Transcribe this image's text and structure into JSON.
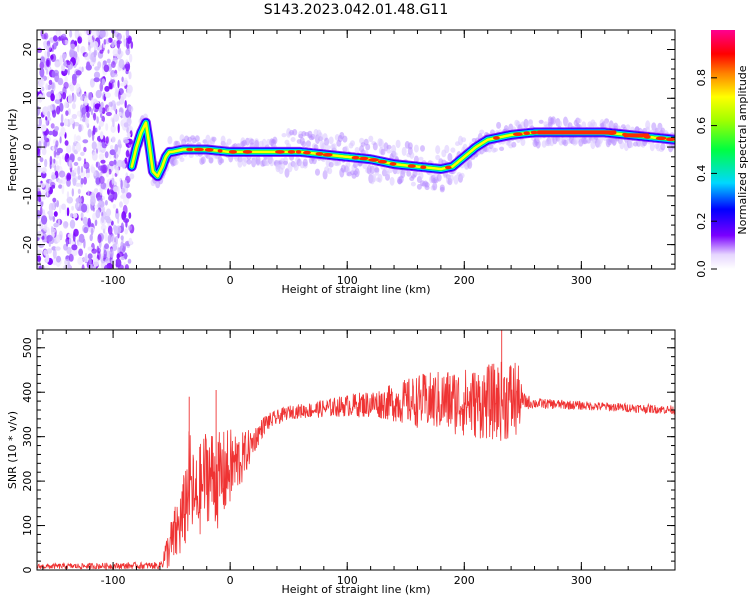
{
  "figure": {
    "title": "S143.2023.042.01.48.G11"
  },
  "colorbar": {
    "label": "Normalized spectral amplitude",
    "ticks": [
      "0.0",
      "0.2",
      "0.4",
      "0.6",
      "0.8"
    ],
    "range": [
      0,
      1
    ],
    "colormap": "rainbow-hsv"
  },
  "chart_data": [
    {
      "type": "heatmap",
      "title": "",
      "xlabel": "Height of straight line (km)",
      "ylabel": "Frequency (Hz)",
      "xlim": [
        -165,
        380
      ],
      "ylim": [
        -25,
        24
      ],
      "x_ticks": [
        -100,
        0,
        100,
        200,
        300
      ],
      "y_ticks": [
        -20,
        -10,
        0,
        10,
        20
      ],
      "ridge": {
        "x": [
          -84,
          -80,
          -76,
          -72,
          -70,
          -66,
          -62,
          -58,
          -55,
          -52,
          -50,
          -40,
          -20,
          0,
          20,
          40,
          60,
          80,
          100,
          120,
          140,
          160,
          180,
          190,
          200,
          210,
          220,
          240,
          260,
          280,
          300,
          320,
          340,
          360,
          380
        ],
        "y": [
          -4,
          0,
          3,
          5,
          2,
          -5,
          -6,
          -4,
          -2,
          -1,
          -1,
          -0.5,
          -0.5,
          -1,
          -1,
          -1,
          -1,
          -1.5,
          -2,
          -2.5,
          -3.5,
          -4,
          -4.5,
          -4,
          -2,
          0,
          1.5,
          2.5,
          3,
          3,
          3,
          3,
          2.5,
          2,
          1.5
        ]
      },
      "noise_region_x": [
        -165,
        -84
      ]
    },
    {
      "type": "line",
      "title": "",
      "xlabel": "Height of straight line (km)",
      "ylabel": "SNR (10 * v/v)",
      "xlim": [
        -165,
        380
      ],
      "ylim": [
        0,
        540
      ],
      "x_ticks": [
        -100,
        0,
        100,
        200,
        300
      ],
      "y_ticks": [
        0,
        100,
        200,
        300,
        400,
        500
      ],
      "series": [
        {
          "color": "#ef3333",
          "envelope": {
            "x": [
              -165,
              -60,
              -50,
              -40,
              -35,
              -30,
              -20,
              -10,
              0,
              10,
              20,
              30,
              50,
              70,
              100,
              130,
              160,
              190,
              210,
              230,
              245,
              250,
              260,
              300,
              340,
              380
            ],
            "mid": [
              8,
              10,
              60,
              120,
              200,
              150,
              220,
              200,
              230,
              250,
              290,
              330,
              355,
              360,
              370,
              375,
              380,
              380,
              375,
              380,
              385,
              380,
              375,
              370,
              365,
              360
            ],
            "amp": [
              6,
              8,
              60,
              90,
              120,
              100,
              110,
              110,
              90,
              60,
              30,
              20,
              15,
              18,
              25,
              35,
              60,
              75,
              80,
              90,
              95,
              20,
              12,
              10,
              10,
              10
            ],
            "peak_x": [
              -35,
              -12,
              232
            ],
            "peak_y": [
              390,
              405,
              545
            ]
          }
        }
      ]
    }
  ]
}
